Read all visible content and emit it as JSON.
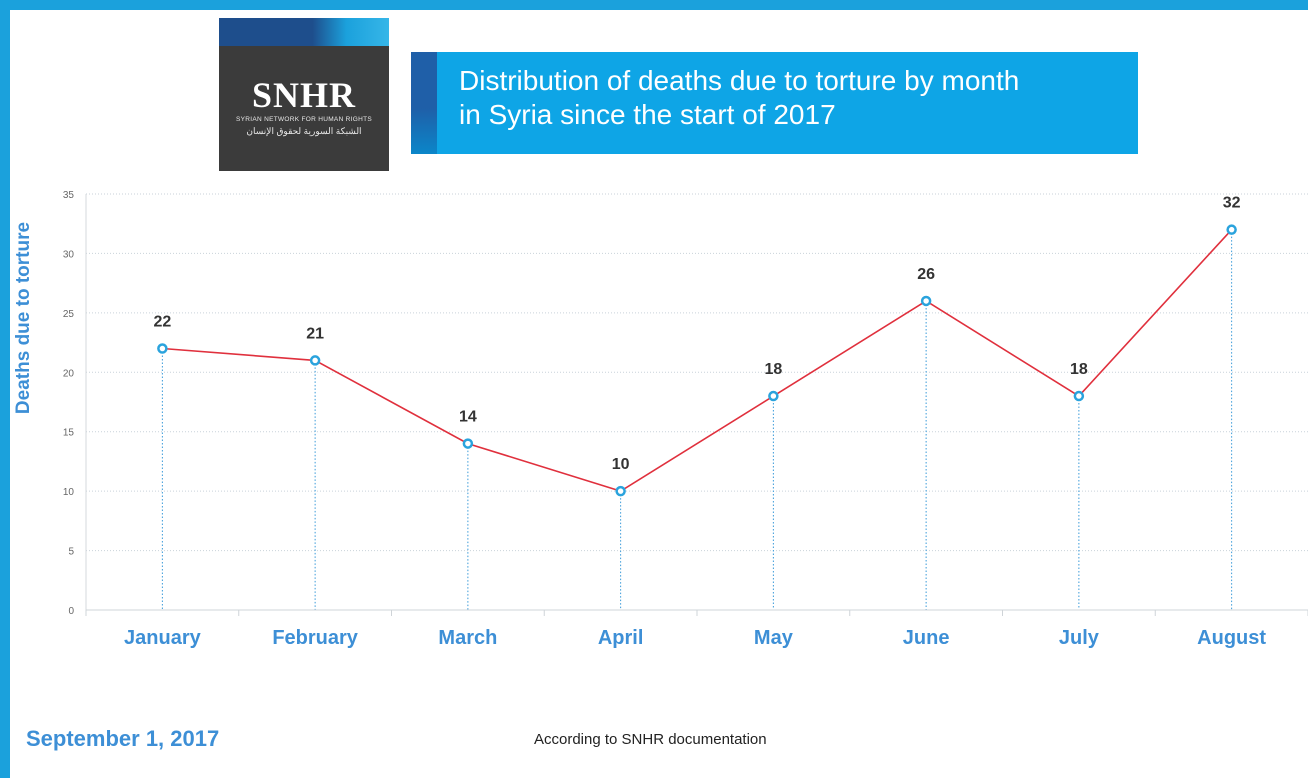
{
  "logo": {
    "word": "SNHR",
    "subtitle_en": "SYRIAN NETWORK FOR HUMAN RIGHTS",
    "subtitle_ar": "الشبكة السورية لحقوق الإنسان"
  },
  "header": {
    "title_line1": "Distribution of deaths due to torture by month",
    "title_line2": "in Syria since the start of 2017"
  },
  "footer": {
    "date": "September 1, 2017",
    "source": "According to SNHR documentation"
  },
  "colors": {
    "frame": "#1ba1dc",
    "line": "#e0303d",
    "marker": "#2aa3dd",
    "axis_label": "#3d8fd6",
    "data_label": "#333333"
  },
  "chart_data": {
    "type": "line",
    "title": "Distribution of deaths due to torture by month in Syria since the start of 2017",
    "xlabel": "",
    "ylabel": "Deaths due to torture",
    "categories": [
      "January",
      "February",
      "March",
      "April",
      "May",
      "June",
      "July",
      "August"
    ],
    "series": [
      {
        "values": [
          22,
          21,
          14,
          10,
          18,
          26,
          18,
          32
        ]
      }
    ],
    "ylim": [
      0,
      35
    ],
    "yticks": [
      0,
      5,
      10,
      15,
      20,
      25,
      30,
      35
    ],
    "grid": true,
    "data_labels": true,
    "drop_lines": true,
    "legend": "none"
  }
}
